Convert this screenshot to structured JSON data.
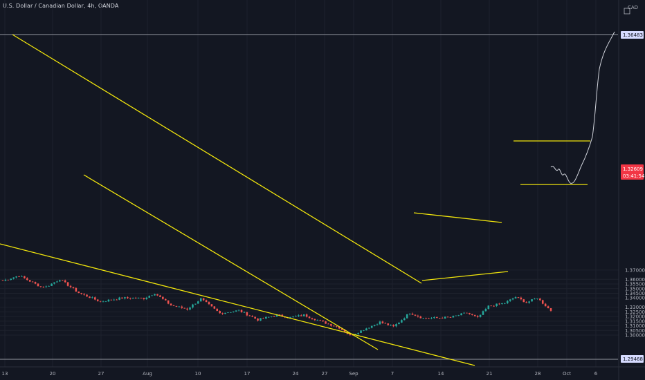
{
  "header": {
    "symbol_title": "U.S. Dollar / Canadian Dollar, 4h, OANDA"
  },
  "price_axis": {
    "currency_label": "CAD",
    "ticks": [
      "1.37000",
      "1.36000",
      "1.35500",
      "1.35000",
      "1.34500",
      "1.34000",
      "1.33000",
      "1.32500",
      "1.32000",
      "1.31500",
      "1.31000",
      "1.30500",
      "1.30000"
    ],
    "tick_values": [
      1.37,
      1.36,
      1.355,
      1.35,
      1.345,
      1.34,
      1.33,
      1.325,
      1.32,
      1.315,
      1.31,
      1.305,
      1.3
    ],
    "resistance_label": "1.36483",
    "support_label": "1.29468",
    "current_price_label": "1.32609",
    "countdown_label": "03:41:54"
  },
  "time_axis": {
    "labels": [
      "13",
      "20",
      "27",
      "Aug",
      "10",
      "17",
      "24",
      "27",
      "Sep",
      "7",
      "14",
      "21",
      "28",
      "Oct",
      "6"
    ]
  },
  "colors": {
    "background": "#131722",
    "bull": "#26a69a",
    "bear": "#ef5350",
    "trendline": "#f2e60c",
    "hline": "#9598a1",
    "price_tag": "#f23645",
    "projection": "#d1d4dc"
  },
  "chart_data": {
    "type": "candlestick",
    "title": "U.S. Dollar / Canadian Dollar, 4h, OANDA",
    "ylim": [
      1.2935,
      1.3725
    ],
    "x_ticks": [
      "13",
      "20",
      "27",
      "Aug",
      "10",
      "17",
      "24",
      "27",
      "Sep",
      "7",
      "14",
      "21",
      "28",
      "Oct",
      "6"
    ],
    "horizontal_levels": [
      1.36483,
      1.29468
    ],
    "last_price": 1.32609,
    "close_path": [
      {
        "i": 0,
        "p": 1.3585
      },
      {
        "i": 6,
        "p": 1.364
      },
      {
        "i": 14,
        "p": 1.352
      },
      {
        "i": 16,
        "p": 1.352
      },
      {
        "i": 21,
        "p": 1.36
      },
      {
        "i": 28,
        "p": 1.3455
      },
      {
        "i": 36,
        "p": 1.336
      },
      {
        "i": 44,
        "p": 1.34
      },
      {
        "i": 52,
        "p": 1.3395
      },
      {
        "i": 56,
        "p": 1.345
      },
      {
        "i": 62,
        "p": 1.332
      },
      {
        "i": 68,
        "p": 1.328
      },
      {
        "i": 73,
        "p": 1.339
      },
      {
        "i": 80,
        "p": 1.3235
      },
      {
        "i": 87,
        "p": 1.3265
      },
      {
        "i": 94,
        "p": 1.3165
      },
      {
        "i": 101,
        "p": 1.3215
      },
      {
        "i": 106,
        "p": 1.319
      },
      {
        "i": 111,
        "p": 1.3215
      },
      {
        "i": 118,
        "p": 1.314
      },
      {
        "i": 124,
        "p": 1.308
      },
      {
        "i": 128,
        "p": 1.2995
      },
      {
        "i": 133,
        "p": 1.306
      },
      {
        "i": 139,
        "p": 1.314
      },
      {
        "i": 144,
        "p": 1.309
      },
      {
        "i": 150,
        "p": 1.324
      },
      {
        "i": 155,
        "p": 1.318
      },
      {
        "i": 165,
        "p": 1.319
      },
      {
        "i": 171,
        "p": 1.324
      },
      {
        "i": 175,
        "p": 1.3185
      },
      {
        "i": 179,
        "p": 1.331
      },
      {
        "i": 185,
        "p": 1.3345
      },
      {
        "i": 189,
        "p": 1.341
      },
      {
        "i": 193,
        "p": 1.335
      },
      {
        "i": 197,
        "p": 1.34
      },
      {
        "i": 202,
        "p": 1.3261
      }
    ]
  }
}
